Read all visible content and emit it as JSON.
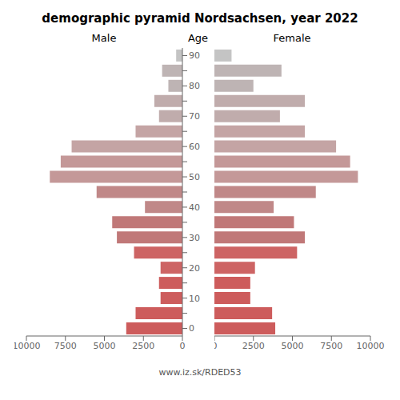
{
  "chart_data": {
    "type": "bar",
    "orientation": "horizontal",
    "title": "demographic pyramid Nordsachsen, year 2022",
    "ylabel": "Age",
    "annotations": [
      "www.iz.sk/RDED53"
    ],
    "categories": [
      "90",
      null,
      "80",
      null,
      "70",
      null,
      "60",
      null,
      "50",
      null,
      "40",
      null,
      "30",
      null,
      "20",
      null,
      "10",
      null,
      "0"
    ],
    "series": [
      {
        "name": "Male",
        "values": [
          400,
          1300,
          900,
          1800,
          1500,
          3000,
          7100,
          7800,
          8500,
          5500,
          2400,
          4500,
          4200,
          3100,
          1400,
          1500,
          1400,
          3000,
          3600
        ]
      },
      {
        "name": "Female",
        "values": [
          1100,
          4300,
          2500,
          5800,
          4200,
          5800,
          7800,
          8700,
          9200,
          6500,
          3800,
          5100,
          5800,
          5300,
          2600,
          2300,
          2300,
          3700,
          3900
        ]
      }
    ],
    "colors": [
      "#c4c4c4",
      "#beb4b4",
      "#beb4b4",
      "#c0acac",
      "#c0acac",
      "#c4a4a4",
      "#c4a4a4",
      "#c49898",
      "#c49898",
      "#c08888",
      "#c08888",
      "#c07878",
      "#c07878",
      "#cd6464",
      "#cd6464",
      "#cd5c5c",
      "#cd5c5c",
      "#cd5c5c",
      "#cd5c5c"
    ],
    "xlim": [
      0,
      10000
    ],
    "xticks": [
      0,
      2500,
      5000,
      7500,
      10000
    ]
  }
}
